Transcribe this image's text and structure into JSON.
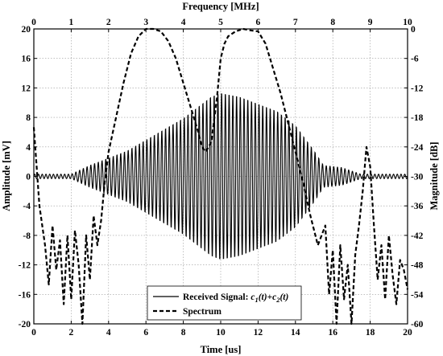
{
  "chart_data": {
    "type": "line",
    "title": "",
    "xlabel": "Time [us]",
    "x2label": "Frequency [MHz]",
    "ylabel": "Amplitude [mV]",
    "y2label": "Magnitude [dB]",
    "xlim": [
      0,
      20
    ],
    "x2lim": [
      0,
      10
    ],
    "ylim": [
      -20,
      20
    ],
    "y2lim": [
      -60,
      0
    ],
    "xticks": [
      "0",
      "2",
      "4",
      "6",
      "8",
      "10",
      "12",
      "14",
      "16",
      "18",
      "20"
    ],
    "x2ticks": [
      "0",
      "1",
      "2",
      "3",
      "4",
      "5",
      "6",
      "7",
      "8",
      "9",
      "10"
    ],
    "yticks": [
      "-20",
      "-16",
      "-12",
      "-8",
      "-4",
      "0",
      "4",
      "8",
      "12",
      "16",
      "20"
    ],
    "y2ticks": [
      "-60",
      "-54",
      "-48",
      "-42",
      "-36",
      "-30",
      "-24",
      "-18",
      "-12",
      "-6",
      "0"
    ],
    "grid": true,
    "legend_position": "bottom-center",
    "series": [
      {
        "name": "Received Signal: ",
        "name_math": [
          "c",
          "1",
          "(t)+",
          "c",
          "2",
          "(t)"
        ],
        "style": "solid",
        "axes": "bottom-left",
        "envelope": {
          "t": [
            0.0,
            2.0,
            3.0,
            4.0,
            5.0,
            6.0,
            7.0,
            8.0,
            9.0,
            9.5,
            10.0,
            11.0,
            12.0,
            13.0,
            14.0,
            15.0,
            15.5,
            16.5,
            17.5,
            20.0
          ],
          "amplitude_mV": [
            0.3,
            0.3,
            1.5,
            2.5,
            3.5,
            5.0,
            6.5,
            8.0,
            10.0,
            11.0,
            11.5,
            11.0,
            10.0,
            9.0,
            7.0,
            3.5,
            1.5,
            1.2,
            0.3,
            0.3
          ]
        },
        "carrier_MHz": 5.0
      },
      {
        "name": "Spectrum",
        "style": "dashed",
        "axes": "top-right",
        "x": [
          0.0,
          0.15,
          0.3,
          0.4,
          0.5,
          0.6,
          0.7,
          0.8,
          0.9,
          1.0,
          1.1,
          1.2,
          1.3,
          1.4,
          1.5,
          1.6,
          1.7,
          1.8,
          1.9,
          2.0,
          2.2,
          2.4,
          2.6,
          2.8,
          3.0,
          3.2,
          3.4,
          3.6,
          3.8,
          4.0,
          4.2,
          4.4,
          4.5,
          4.6,
          4.75,
          4.9,
          5.0,
          5.1,
          5.2,
          5.4,
          5.6,
          5.8,
          6.0,
          6.2,
          6.4,
          6.6,
          6.8,
          7.0,
          7.2,
          7.4,
          7.6,
          7.8,
          7.9,
          8.0,
          8.1,
          8.2,
          8.3,
          8.4,
          8.5,
          8.6,
          8.7,
          8.8,
          8.9,
          9.0,
          9.1,
          9.2,
          9.3,
          9.4,
          9.5,
          9.6,
          9.7,
          9.8,
          9.9,
          10.0
        ],
        "y": [
          -20,
          -36,
          -44,
          -52,
          -40,
          -49,
          -43,
          -56,
          -42,
          -55,
          -41,
          -48,
          -60,
          -42,
          -51,
          -38,
          -44,
          -39,
          -31,
          -25,
          -18,
          -11,
          -5,
          -1.5,
          0,
          0,
          -0.5,
          -2.5,
          -6,
          -11,
          -16,
          -21,
          -24,
          -25,
          -23,
          -14,
          -6,
          -3,
          -1.5,
          -0.5,
          0,
          -0.3,
          -0.5,
          -3,
          -8,
          -13,
          -19,
          -25,
          -31,
          -38,
          -44,
          -40,
          -54,
          -45,
          -60,
          -44,
          -55,
          -48,
          -60,
          -46,
          -40,
          -33,
          -24,
          -28,
          -40,
          -51,
          -44,
          -55,
          -42,
          -50,
          -56,
          -47,
          -49,
          -53
        ]
      }
    ]
  }
}
